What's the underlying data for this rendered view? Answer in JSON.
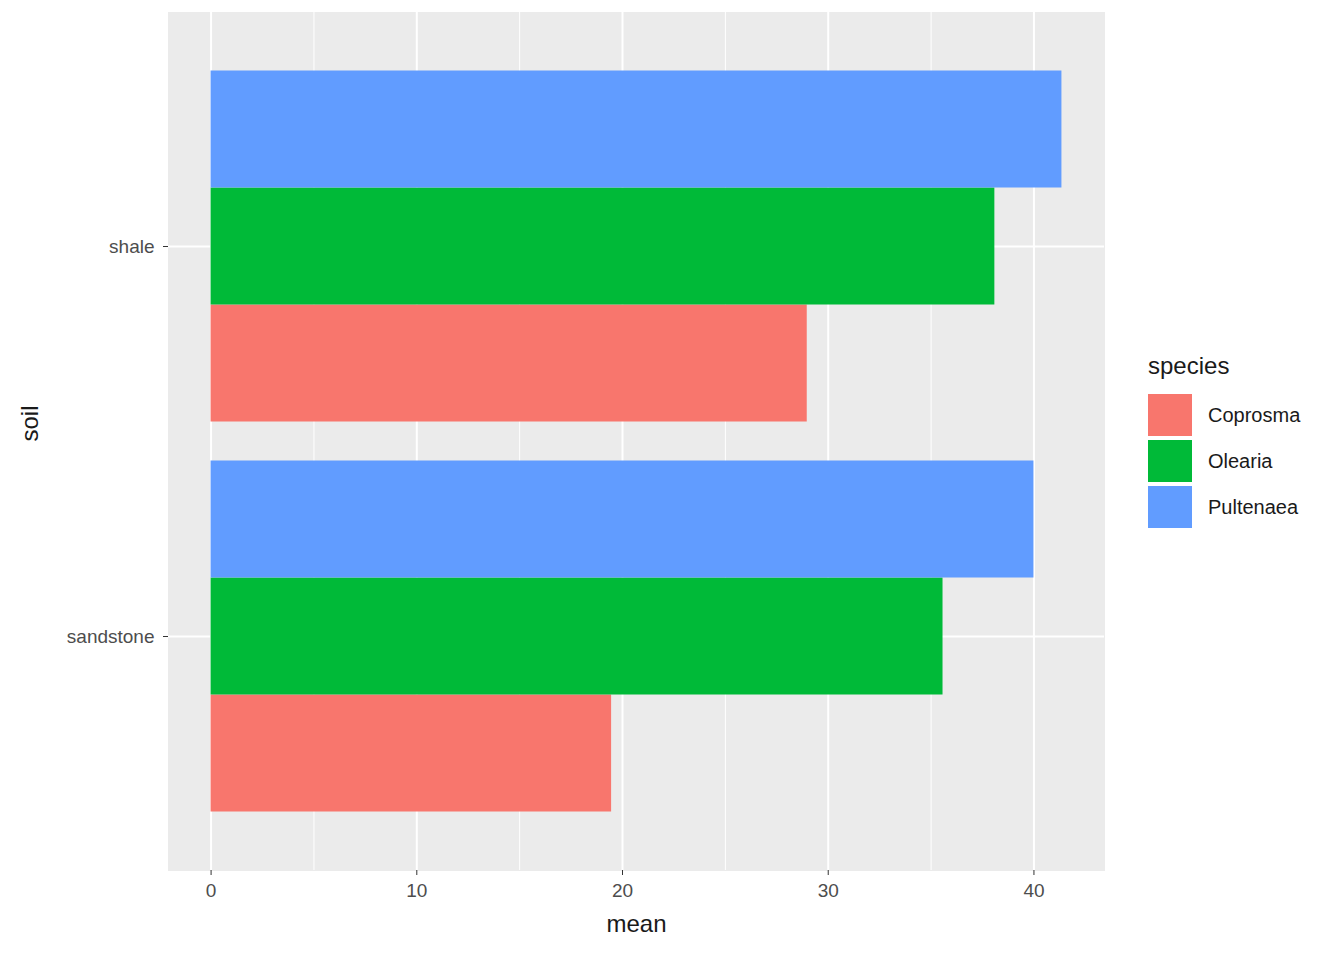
{
  "chart_data": {
    "type": "bar",
    "orientation": "horizontal",
    "x_label": "mean",
    "y_label": "soil",
    "legend_title": "species",
    "categories": [
      "sandstone",
      "shale"
    ],
    "series": [
      {
        "name": "Coprosma",
        "color": "#F8766D",
        "values": [
          19.47,
          28.98
        ]
      },
      {
        "name": "Olearia",
        "color": "#00BA38",
        "values": [
          35.58,
          38.1
        ]
      },
      {
        "name": "Pultenaea",
        "color": "#619CFF",
        "values": [
          40.0,
          41.36
        ]
      }
    ],
    "xlim": [
      -2.07,
      43.43
    ],
    "xticks": [
      0,
      10,
      20,
      30,
      40
    ],
    "grid": true,
    "legend": "right"
  }
}
